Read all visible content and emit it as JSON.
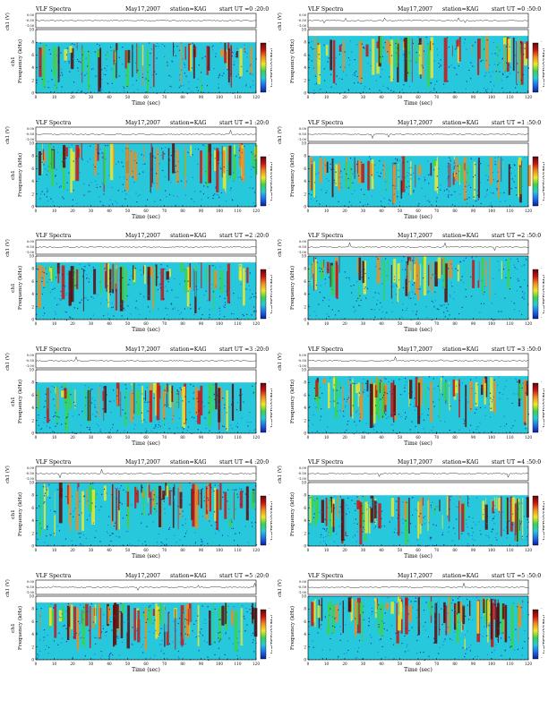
{
  "colors": {
    "spectrum": [
      "#0a1e9c",
      "#1e6ee6",
      "#28c8dc",
      "#3cd24a",
      "#f0e628",
      "#f08c1e",
      "#c81414",
      "#5a0a0a"
    ],
    "background_band": "#28c8dc",
    "axis": "#000000"
  },
  "chart_data": [
    {
      "type": "heatmap",
      "title": "VLF Spectra",
      "date": "May17,2007",
      "station": "station=KAG",
      "start_ut": "start UT =0 :20:0",
      "ch_label": "ch1 (V)",
      "ylabel": "ch1\nFrequency (kHz)",
      "xlabel": "Time (sec)",
      "colorbar_label": "log(PSD)(V²/Hz)",
      "xlim": [
        0,
        120
      ],
      "ylim": [
        0,
        10
      ],
      "xticks": [
        0,
        10,
        20,
        30,
        40,
        50,
        60,
        70,
        80,
        90,
        100,
        110,
        120
      ],
      "yticks": [
        0,
        2,
        4,
        6,
        8,
        10
      ],
      "amplitude_ticks": [
        "0.00",
        "-0.50",
        "-1.00"
      ],
      "colorbar_ticks": [
        "-",
        "-"
      ]
    },
    {
      "type": "heatmap",
      "title": "VLF Spectra",
      "date": "May17,2007",
      "station": "station=KAG",
      "start_ut": "start UT =0 :50:0",
      "ch_label": "ch1 (V)",
      "ylabel": "Frequency (kHz)",
      "xlabel": "Time (sec)",
      "colorbar_label": "log(PSD)(V²/Hz)",
      "xlim": [
        0,
        120
      ],
      "ylim": [
        0,
        10
      ],
      "xticks": [
        0,
        10,
        20,
        30,
        40,
        50,
        60,
        70,
        80,
        90,
        100,
        110,
        120
      ],
      "yticks": [
        0,
        2,
        4,
        6,
        8,
        10
      ],
      "amplitude_ticks": [
        "0.00",
        "-0.50",
        "-1.00"
      ],
      "colorbar_ticks": [
        "-",
        "-"
      ]
    },
    {
      "type": "heatmap",
      "title": "VLF Spectra",
      "date": "May17,2007",
      "station": "station=KAG",
      "start_ut": "start UT =1 :20:0",
      "ch_label": "ch1 (V)",
      "ylabel": "ch1\nFrequency (kHz)",
      "xlabel": "Time (sec)",
      "colorbar_label": "log(PSD)(V²/Hz)",
      "xlim": [
        0,
        120
      ],
      "ylim": [
        0,
        10
      ],
      "xticks": [
        0,
        10,
        20,
        30,
        40,
        50,
        60,
        70,
        80,
        90,
        100,
        110,
        120
      ],
      "yticks": [
        0,
        2,
        4,
        6,
        8,
        10
      ],
      "amplitude_ticks": [
        "0.00",
        "-0.50",
        "-1.00"
      ],
      "colorbar_ticks": [
        "-",
        "-"
      ]
    },
    {
      "type": "heatmap",
      "title": "VLF Spectra",
      "date": "May17,2007",
      "station": "station=KAG",
      "start_ut": "start UT =1 :50:0",
      "ch_label": "ch1 (V)",
      "ylabel": "Frequency (kHz)",
      "xlabel": "Time (sec)",
      "colorbar_label": "log(PSD)(V²/Hz)",
      "xlim": [
        0,
        120
      ],
      "ylim": [
        0,
        10
      ],
      "xticks": [
        0,
        10,
        20,
        30,
        40,
        50,
        60,
        70,
        80,
        90,
        100,
        110,
        120
      ],
      "yticks": [
        0,
        2,
        4,
        6,
        8,
        10
      ],
      "amplitude_ticks": [
        "0.00",
        "-0.50",
        "-1.00"
      ],
      "colorbar_ticks": [
        "-",
        "-"
      ]
    },
    {
      "type": "heatmap",
      "title": "VLF Spectra",
      "date": "May17,2007",
      "station": "station=KAG",
      "start_ut": "start UT =2 :20:0",
      "ch_label": "ch1 (V)",
      "ylabel": "ch1\nFrequency (kHz)",
      "xlabel": "Time (sec)",
      "colorbar_label": "log(PSD)(V²/Hz)",
      "xlim": [
        0,
        120
      ],
      "ylim": [
        0,
        10
      ],
      "xticks": [
        0,
        10,
        20,
        30,
        40,
        50,
        60,
        70,
        80,
        90,
        100,
        110,
        120
      ],
      "yticks": [
        0,
        2,
        4,
        6,
        8,
        10
      ],
      "amplitude_ticks": [
        "0.00",
        "-0.50",
        "-1.00"
      ],
      "colorbar_ticks": [
        "-",
        "-"
      ]
    },
    {
      "type": "heatmap",
      "title": "VLF Spectra",
      "date": "May17,2007",
      "station": "station=KAG",
      "start_ut": "start UT =2 :50:0",
      "ch_label": "ch1 (V)",
      "ylabel": "Frequency (kHz)",
      "xlabel": "Time (sec)",
      "colorbar_label": "log(PSD)(V²/Hz)",
      "xlim": [
        0,
        120
      ],
      "ylim": [
        0,
        10
      ],
      "xticks": [
        0,
        10,
        20,
        30,
        40,
        50,
        60,
        70,
        80,
        90,
        100,
        110,
        120
      ],
      "yticks": [
        0,
        2,
        4,
        6,
        8,
        10
      ],
      "amplitude_ticks": [
        "0.00",
        "-0.50",
        "-1.00"
      ],
      "colorbar_ticks": [
        "-",
        "-"
      ]
    },
    {
      "type": "heatmap",
      "title": "VLF Spectra",
      "date": "May17,2007",
      "station": "station=KAG",
      "start_ut": "start UT =3 :20:0",
      "ch_label": "ch1 (V)",
      "ylabel": "ch1\nFrequency (kHz)",
      "xlabel": "Time (sec)",
      "colorbar_label": "log(PSD)(V²/Hz)",
      "xlim": [
        0,
        120
      ],
      "ylim": [
        0,
        10
      ],
      "xticks": [
        0,
        10,
        20,
        30,
        40,
        50,
        60,
        70,
        80,
        90,
        100,
        110,
        120
      ],
      "yticks": [
        0,
        2,
        4,
        6,
        8,
        10
      ],
      "amplitude_ticks": [
        "0.00",
        "-0.50",
        "-1.00"
      ],
      "colorbar_ticks": [
        "-",
        "-"
      ]
    },
    {
      "type": "heatmap",
      "title": "VLF Spectra",
      "date": "May17,2007",
      "station": "station=KAG",
      "start_ut": "start UT =3 :50:0",
      "ch_label": "ch1 (V)",
      "ylabel": "Frequency (kHz)",
      "xlabel": "Time (sec)",
      "colorbar_label": "log(PSD)(V²/Hz)",
      "xlim": [
        0,
        120
      ],
      "ylim": [
        0,
        10
      ],
      "xticks": [
        0,
        10,
        20,
        30,
        40,
        50,
        60,
        70,
        80,
        90,
        100,
        110,
        120
      ],
      "yticks": [
        0,
        2,
        4,
        6,
        8,
        10
      ],
      "amplitude_ticks": [
        "0.00",
        "-0.50",
        "-1.00"
      ],
      "colorbar_ticks": [
        "-",
        "-"
      ]
    },
    {
      "type": "heatmap",
      "title": "VLF Spectra",
      "date": "May17,2007",
      "station": "station=KAG",
      "start_ut": "start UT =4 :20:0",
      "ch_label": "ch1 (V)",
      "ylabel": "ch1\nFrequency (kHz)",
      "xlabel": "Time (sec)",
      "colorbar_label": "log(PSD)(V²/Hz)",
      "xlim": [
        0,
        120
      ],
      "ylim": [
        0,
        10
      ],
      "xticks": [
        0,
        10,
        20,
        30,
        40,
        50,
        60,
        70,
        80,
        90,
        100,
        110,
        120
      ],
      "yticks": [
        0,
        2,
        4,
        6,
        8,
        10
      ],
      "amplitude_ticks": [
        "0.00",
        "-0.50",
        "-1.00"
      ],
      "colorbar_ticks": [
        "-",
        "-"
      ]
    },
    {
      "type": "heatmap",
      "title": "VLF Spectra",
      "date": "May17,2007",
      "station": "station=KAG",
      "start_ut": "start UT =4 :50:0",
      "ch_label": "ch1 (V)",
      "ylabel": "Frequency (kHz)",
      "xlabel": "Time (sec)",
      "colorbar_label": "log(PSD)(V²/Hz)",
      "xlim": [
        0,
        120
      ],
      "ylim": [
        0,
        10
      ],
      "xticks": [
        0,
        10,
        20,
        30,
        40,
        50,
        60,
        70,
        80,
        90,
        100,
        110,
        120
      ],
      "yticks": [
        0,
        2,
        4,
        6,
        8,
        10
      ],
      "amplitude_ticks": [
        "0.00",
        "-0.50",
        "-1.00"
      ],
      "colorbar_ticks": [
        "-",
        "-"
      ]
    },
    {
      "type": "heatmap",
      "title": "VLF Spectra",
      "date": "May17,2007",
      "station": "station=KAG",
      "start_ut": "start UT =5 :20:0",
      "ch_label": "ch1 (V)",
      "ylabel": "ch1\nFrequency (kHz)",
      "xlabel": "Time (sec)",
      "colorbar_label": "log(PSD)(V²/Hz)",
      "xlim": [
        0,
        120
      ],
      "ylim": [
        0,
        10
      ],
      "xticks": [
        0,
        10,
        20,
        30,
        40,
        50,
        60,
        70,
        80,
        90,
        100,
        110,
        120
      ],
      "yticks": [
        0,
        2,
        4,
        6,
        8,
        10
      ],
      "amplitude_ticks": [
        "0.00",
        "-0.50",
        "-1.00"
      ],
      "colorbar_ticks": [
        "-",
        "-"
      ]
    },
    {
      "type": "heatmap",
      "title": "VLF Spectra",
      "date": "May17,2007",
      "station": "station=KAG",
      "start_ut": "start UT =5 :50:0",
      "ch_label": "ch1 (V)",
      "ylabel": "Frequency (kHz)",
      "xlabel": "Time (sec)",
      "colorbar_label": "log(PSD)(V²/Hz)",
      "xlim": [
        0,
        120
      ],
      "ylim": [
        0,
        10
      ],
      "xticks": [
        0,
        10,
        20,
        30,
        40,
        50,
        60,
        70,
        80,
        90,
        100,
        110,
        120
      ],
      "yticks": [
        0,
        2,
        4,
        6,
        8,
        10
      ],
      "amplitude_ticks": [
        "0.00",
        "-0.50",
        "-1.00"
      ],
      "colorbar_ticks": [
        "-",
        "-"
      ]
    }
  ]
}
